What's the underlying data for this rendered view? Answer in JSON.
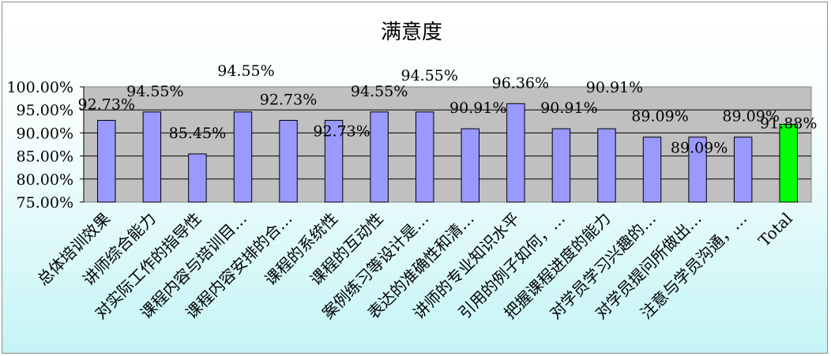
{
  "chart_data": {
    "type": "bar",
    "title": "满意度",
    "categories": [
      "总体培训效果",
      "讲师综合能力",
      "对实际工作的指导性",
      "课程内容与培训目…",
      "课程内容安排的合…",
      "课程的系统性",
      "课程的互动性",
      "案例练习等设计是…",
      "表达的准确性和清…",
      "讲师的专业知识水平",
      "引用的例子如何，…",
      "把握课程进度的能力",
      "对学员学习兴趣的…",
      "对学员提问所做出…",
      "注意与学员沟通，…",
      "Total"
    ],
    "values": [
      92.73,
      94.55,
      85.45,
      94.55,
      92.73,
      92.73,
      94.55,
      94.55,
      90.91,
      96.36,
      90.91,
      90.91,
      89.09,
      89.09,
      89.09,
      91.88
    ],
    "data_labels": [
      "92.73%",
      "94.55%",
      "85.45%",
      "94.55%",
      "92.73%",
      "92.73%",
      "94.55%",
      "94.55%",
      "90.91%",
      "96.36%",
      "90.91%",
      "90.91%",
      "89.09%",
      "89.09%",
      "89.09%",
      "91.88%"
    ],
    "y_ticks": [
      "75.00%",
      "80.00%",
      "85.00%",
      "90.00%",
      "95.00%",
      "100.00%"
    ],
    "ylim": [
      75,
      100
    ],
    "xlabel": "",
    "ylabel": "",
    "grid": true,
    "legend": "none",
    "colors": {
      "bar": "#9999ff",
      "total_bar": "#00ff00",
      "plot_background": "#c0c0c0",
      "gridline": "#000000"
    }
  }
}
